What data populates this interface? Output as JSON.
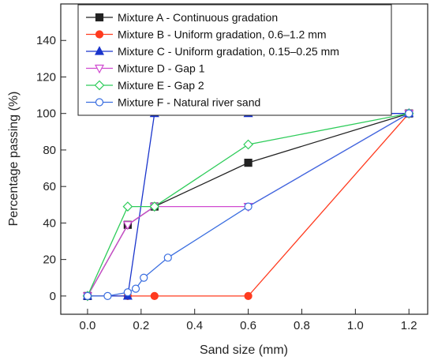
{
  "chart_data": {
    "type": "line",
    "title": "",
    "xlabel": "Sand size (mm)",
    "ylabel": "Percentage passing (%)",
    "xlim": [
      -0.1,
      1.27
    ],
    "ylim": [
      -10,
      160
    ],
    "xticks": [
      "0.0",
      "0.2",
      "0.4",
      "0.6",
      "0.8",
      "1.0",
      "1.2"
    ],
    "yticks": [
      "0",
      "20",
      "40",
      "60",
      "80",
      "100",
      "120",
      "140"
    ],
    "grid": false,
    "legend_position": "top-right",
    "series": [
      {
        "name": "Mixture A - Continuous gradation",
        "color": "#222222",
        "marker": "square-filled",
        "x": [
          0.0,
          0.15,
          0.25,
          0.6,
          1.2
        ],
        "y": [
          0,
          39,
          49,
          73,
          100
        ]
      },
      {
        "name": "Mixture B - Uniform gradation, 0.6–1.2 mm",
        "color": "#ff3b1f",
        "marker": "circle-filled",
        "x": [
          0.0,
          0.15,
          0.25,
          0.6,
          1.2
        ],
        "y": [
          0,
          0,
          0,
          0,
          100
        ]
      },
      {
        "name": "Mixture C - Uniform gradation, 0.15–0.25 mm",
        "color": "#1a35cc",
        "marker": "triangle-filled",
        "x": [
          0.0,
          0.15,
          0.25,
          0.6,
          1.2
        ],
        "y": [
          0,
          0,
          100,
          100,
          100
        ]
      },
      {
        "name": "Mixture D - Gap 1",
        "color": "#d04ad0",
        "marker": "triangle-down-open",
        "x": [
          0.0,
          0.15,
          0.25,
          0.6,
          1.2
        ],
        "y": [
          0,
          39,
          49,
          49,
          100
        ]
      },
      {
        "name": "Mixture E - Gap 2",
        "color": "#2ecc5a",
        "marker": "diamond-open",
        "x": [
          0.0,
          0.15,
          0.25,
          0.6,
          1.2
        ],
        "y": [
          0,
          49,
          49,
          83,
          100
        ]
      },
      {
        "name": "Mixture F - Natural river sand",
        "color": "#3a6ee0",
        "marker": "circle-open",
        "x": [
          0.0,
          0.075,
          0.15,
          0.18,
          0.21,
          0.3,
          0.6,
          1.2
        ],
        "y": [
          0,
          0,
          2,
          4,
          10,
          21,
          49,
          100
        ]
      }
    ]
  }
}
